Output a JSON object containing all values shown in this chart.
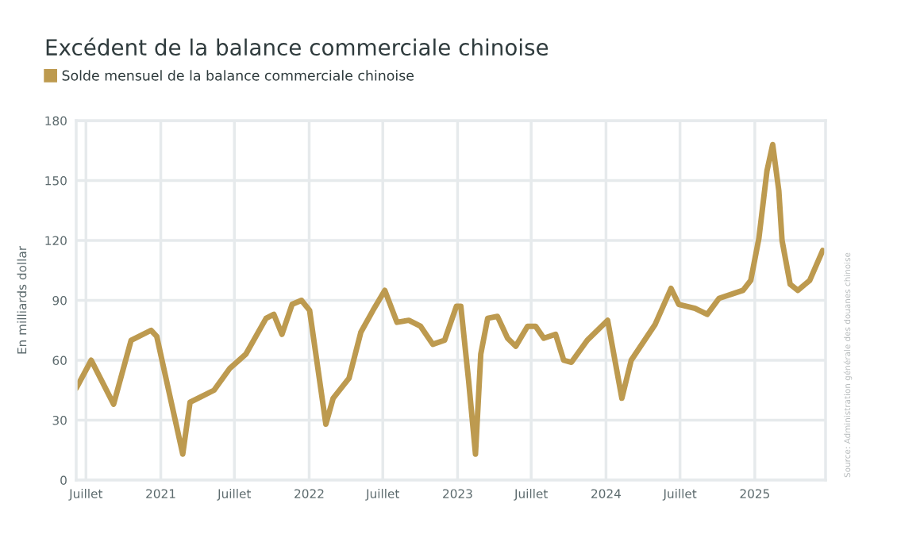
{
  "chart_data": {
    "type": "line",
    "title": "Excédent de la balance commerciale chinoise",
    "ylabel": "En milliards dollar",
    "annotations": [
      "Source: Administration générale des douanes chinoise"
    ],
    "x": [
      "2020-06-07",
      "2020-07-14",
      "2020-09-07",
      "2020-10-20",
      "2020-12-08",
      "2020-12-22",
      "2021-02-24",
      "2021-03-14",
      "2021-05-12",
      "2021-06-20",
      "2021-07-29",
      "2021-09-17",
      "2021-10-06",
      "2021-10-26",
      "2021-11-20",
      "2021-12-13",
      "2022-01-02",
      "2022-02-11",
      "2022-03-01",
      "2022-04-09",
      "2022-05-08",
      "2022-06-07",
      "2022-07-06",
      "2022-08-05",
      "2022-09-03",
      "2022-10-02",
      "2022-11-01",
      "2022-11-30",
      "2022-12-29",
      "2023-01-09",
      "2023-01-28",
      "2023-02-14",
      "2023-02-27",
      "2023-03-16",
      "2023-04-09",
      "2023-05-04",
      "2023-05-24",
      "2023-06-22",
      "2023-07-12",
      "2023-08-01",
      "2023-08-30",
      "2023-09-19",
      "2023-10-08",
      "2023-11-16",
      "2024-01-05",
      "2024-02-09",
      "2024-03-03",
      "2024-05-01",
      "2024-06-09",
      "2024-06-28",
      "2024-08-07",
      "2024-09-06",
      "2024-10-05",
      "2024-12-03",
      "2024-12-22",
      "2025-01-11",
      "2025-01-31",
      "2025-02-14",
      "2025-03-01",
      "2025-03-09",
      "2025-03-29",
      "2025-04-17",
      "2025-05-16",
      "2025-06-17"
    ],
    "series": [
      {
        "name": "Solde mensuel de la balance commerciale chinoise",
        "color": "#bd9a4f",
        "values": [
          46,
          60,
          38,
          70,
          75,
          72,
          13,
          39,
          45,
          56,
          63,
          81,
          83,
          73,
          88,
          90,
          85,
          28,
          41,
          51,
          74,
          85,
          95,
          79,
          80,
          77,
          68,
          70,
          87,
          87,
          50,
          13,
          63,
          81,
          82,
          71,
          67,
          77,
          77,
          71,
          73,
          60,
          59,
          70,
          80,
          41,
          60,
          78,
          96,
          88,
          86,
          83,
          91,
          95,
          100,
          121,
          155,
          168,
          145,
          120,
          98,
          95,
          100,
          115
        ]
      }
    ],
    "xlim": [
      "2020-06-07",
      "2025-06-24"
    ],
    "xticks": [
      {
        "value": "2020-07-01",
        "label": "Juillet"
      },
      {
        "value": "2021-01-01",
        "label": "2021"
      },
      {
        "value": "2021-07-01",
        "label": "Juillet"
      },
      {
        "value": "2022-01-01",
        "label": "2022"
      },
      {
        "value": "2022-07-01",
        "label": "Juillet"
      },
      {
        "value": "2023-01-01",
        "label": "2023"
      },
      {
        "value": "2023-07-01",
        "label": "Juillet"
      },
      {
        "value": "2024-01-01",
        "label": "2024"
      },
      {
        "value": "2024-07-01",
        "label": "Juillet"
      },
      {
        "value": "2025-01-01",
        "label": "2025"
      }
    ],
    "ylim": [
      0,
      180
    ],
    "yticks": [
      0,
      30,
      60,
      90,
      120,
      150,
      180
    ],
    "grid": true,
    "legend": "top left",
    "marker": "none",
    "line_style": "solid"
  }
}
